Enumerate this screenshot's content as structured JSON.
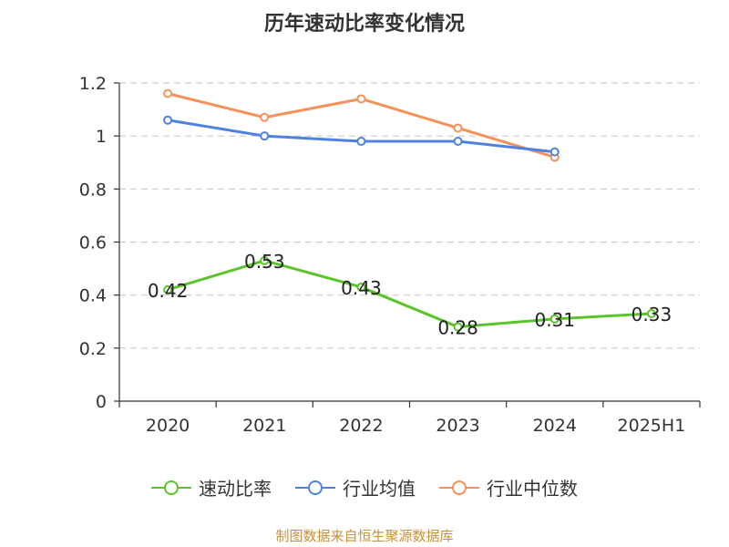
{
  "chart_data": {
    "type": "line",
    "title": "历年速动比率变化情况",
    "categories": [
      "2020",
      "2021",
      "2022",
      "2023",
      "2024",
      "2025H1"
    ],
    "y_ticks": [
      "0",
      "0.2",
      "0.4",
      "0.6",
      "0.8",
      "1",
      "1.2"
    ],
    "ylim": [
      0,
      1.2
    ],
    "grid": true,
    "legend_position": "bottom",
    "series": [
      {
        "name": "速动比率",
        "color": "#5cc42a",
        "show_labels": true,
        "values": [
          0.42,
          0.53,
          0.43,
          0.28,
          0.31,
          0.33
        ],
        "labels": [
          "0.42",
          "0.53",
          "0.43",
          "0.28",
          "0.31",
          "0.33"
        ]
      },
      {
        "name": "行业均值",
        "color": "#4f81e0",
        "show_labels": false,
        "values": [
          1.06,
          1.0,
          0.98,
          0.98,
          0.94,
          null
        ]
      },
      {
        "name": "行业中位数",
        "color": "#f7915a",
        "show_labels": false,
        "values": [
          1.16,
          1.07,
          1.14,
          1.03,
          0.92,
          null
        ]
      }
    ]
  },
  "source_note": "制图数据来自恒生聚源数据库"
}
